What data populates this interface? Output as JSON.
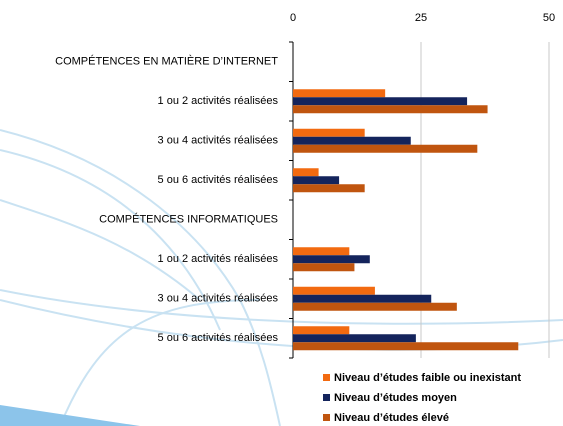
{
  "chart_data": {
    "type": "bar",
    "orientation": "horizontal",
    "categories": [
      "COMPÉTENCES EN MATIÈRE D’INTERNET",
      "1 ou 2 activités réalisées",
      "3 ou 4 activités réalisées",
      "5 ou 6 activités réalisées",
      "COMPÉTENCES INFORMATIQUES",
      "1 ou 2 activités réalisées",
      "3 ou 4 activités réalisées",
      "5 ou 6 activités réalisées"
    ],
    "series": [
      {
        "name": "Niveau d’études faible ou inexistant",
        "color": "#f26a10",
        "values": [
          null,
          18,
          14,
          5,
          null,
          11,
          16,
          11
        ]
      },
      {
        "name": "Niveau d’études moyen",
        "color": "#14245c",
        "values": [
          null,
          34,
          23,
          9,
          null,
          15,
          27,
          24
        ]
      },
      {
        "name": "Niveau d’études élevé",
        "color": "#c0550f",
        "values": [
          null,
          38,
          36,
          14,
          null,
          12,
          32,
          44
        ]
      }
    ],
    "xlim": [
      0,
      50
    ],
    "xticks": [
      0,
      25,
      50
    ],
    "grid": true,
    "legend": "bottom"
  }
}
